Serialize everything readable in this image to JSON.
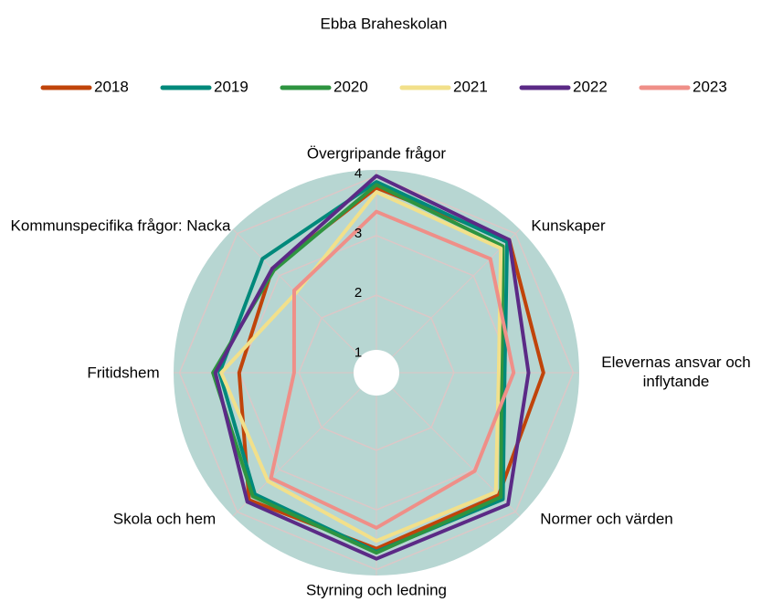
{
  "chart_data": {
    "type": "radar",
    "title": "Ebba Braheskolan",
    "categories": [
      "Övergripande frågor",
      "Kunskaper",
      "Elevernas ansvar och inflytande",
      "Normer och värden",
      "Styrning och ledning",
      "Skola och hem",
      "Fritidshem",
      "Kommunspecifika frågor: Nacka"
    ],
    "ylim": [
      0.7,
      4.1
    ],
    "yticks": [
      1,
      2,
      3,
      4
    ],
    "grid": true,
    "legend": "top",
    "series": [
      {
        "name": "2018",
        "color": "#c0440a",
        "values": [
          3.8,
          3.85,
          3.5,
          3.6,
          3.65,
          3.72,
          3.0,
          3.17
        ]
      },
      {
        "name": "2019",
        "color": "#00897b",
        "values": [
          3.9,
          3.8,
          2.85,
          3.7,
          3.7,
          3.58,
          3.33,
          3.4
        ]
      },
      {
        "name": "2020",
        "color": "#2e9440",
        "values": [
          3.85,
          3.7,
          2.8,
          3.65,
          3.72,
          3.63,
          3.44,
          3.13
        ]
      },
      {
        "name": "2021",
        "color": "#f2e08a",
        "values": [
          3.73,
          3.65,
          2.75,
          3.53,
          3.52,
          3.27,
          3.3,
          2.6
        ]
      },
      {
        "name": "2022",
        "color": "#5b2a86",
        "values": [
          4.0,
          3.85,
          3.25,
          3.82,
          3.82,
          3.76,
          3.4,
          3.17
        ]
      },
      {
        "name": "2023",
        "color": "#ef8f88",
        "values": [
          3.4,
          3.4,
          3.0,
          3.03,
          3.3,
          3.2,
          2.08,
          2.65
        ]
      }
    ]
  }
}
